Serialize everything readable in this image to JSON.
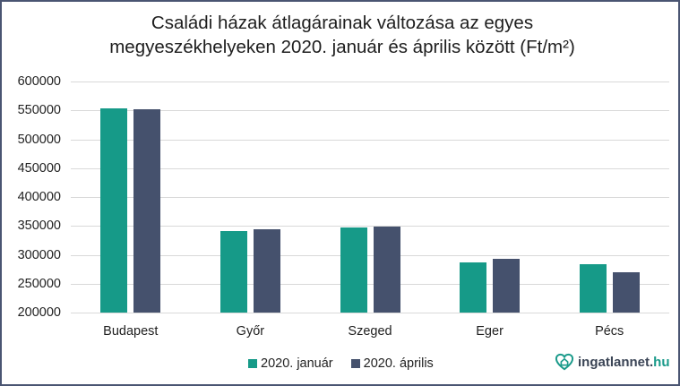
{
  "chart": {
    "title_line1": "Családi házak átlagárainak változása az egyes",
    "title_line2": "megyeszékhelyeken  2020. január és április között (Ft/m²)",
    "yticks": [
      "600000",
      "550000",
      "500000",
      "450000",
      "400000",
      "350000",
      "300000",
      "250000",
      "200000"
    ],
    "categories": [
      "Budapest",
      "Győr",
      "Szeged",
      "Eger",
      "Pécs"
    ],
    "legend": {
      "jan": "2020. január",
      "apr": "2020. április"
    },
    "colors": {
      "jan": "#169a88",
      "apr": "#45516d",
      "border": "#4a5572",
      "grid": "#d9d9d9"
    }
  },
  "logo": {
    "name": "ingatlannet.",
    "tld": "hu",
    "icon": "heart-house-icon"
  },
  "chart_data": {
    "type": "bar",
    "title": "Családi házak átlagárainak változása az egyes megyeszékhelyeken 2020. január és április között (Ft/m²)",
    "categories": [
      "Budapest",
      "Győr",
      "Szeged",
      "Eger",
      "Pécs"
    ],
    "series": [
      {
        "name": "2020. január",
        "values": [
          553000,
          341000,
          347000,
          287000,
          283000
        ]
      },
      {
        "name": "2020. április",
        "values": [
          552000,
          344000,
          349000,
          293000,
          269000
        ]
      }
    ],
    "xlabel": "",
    "ylabel": "",
    "ylim": [
      200000,
      600000
    ],
    "ytick_step": 50000,
    "grid": true,
    "legend_position": "bottom"
  }
}
